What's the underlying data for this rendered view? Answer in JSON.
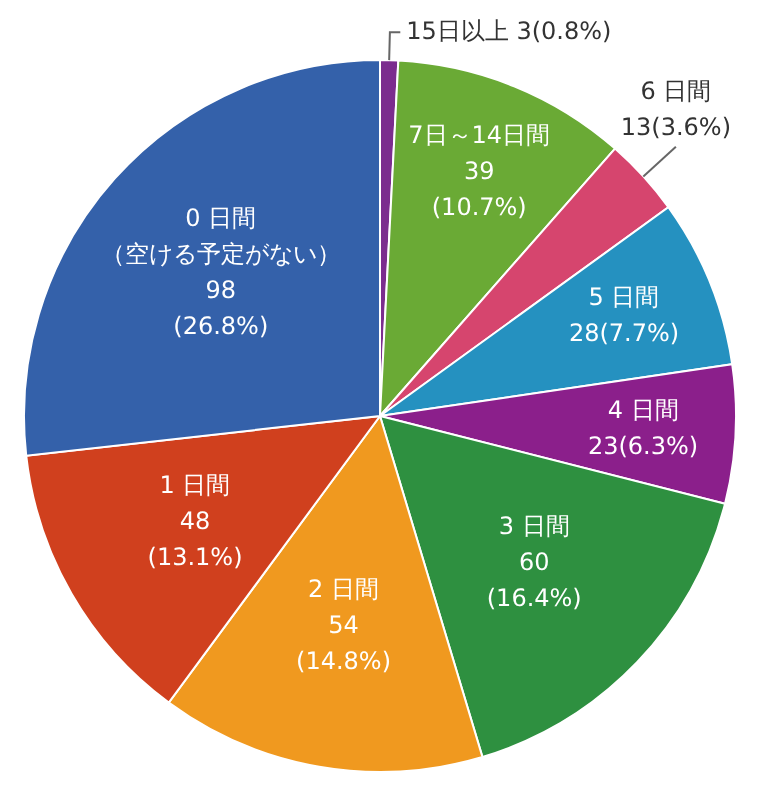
{
  "chart_data": {
    "type": "pie",
    "categories": [
      "15日以上",
      "7日～14日間",
      "6 日間",
      "5 日間",
      "4 日間",
      "3 日間",
      "2 日間",
      "1 日間",
      "0 日間"
    ],
    "values": [
      3,
      39,
      13,
      28,
      23,
      60,
      54,
      48,
      98
    ],
    "colors": [
      "#7b2d8e",
      "#6aaa35",
      "#d6456e",
      "#2591c0",
      "#8b1f8b",
      "#2e9040",
      "#f0991f",
      "#d0401e",
      "#3461aa"
    ],
    "value_labels": [
      "3(0.8%)",
      "39\n(10.7%)",
      "13(3.6%)",
      "28(7.7%)",
      "23(6.3%)",
      "60\n(16.4%)",
      "54\n(14.8%)",
      "48\n(13.1%)",
      "（空ける予定がない）\n98\n(26.8%)"
    ]
  }
}
